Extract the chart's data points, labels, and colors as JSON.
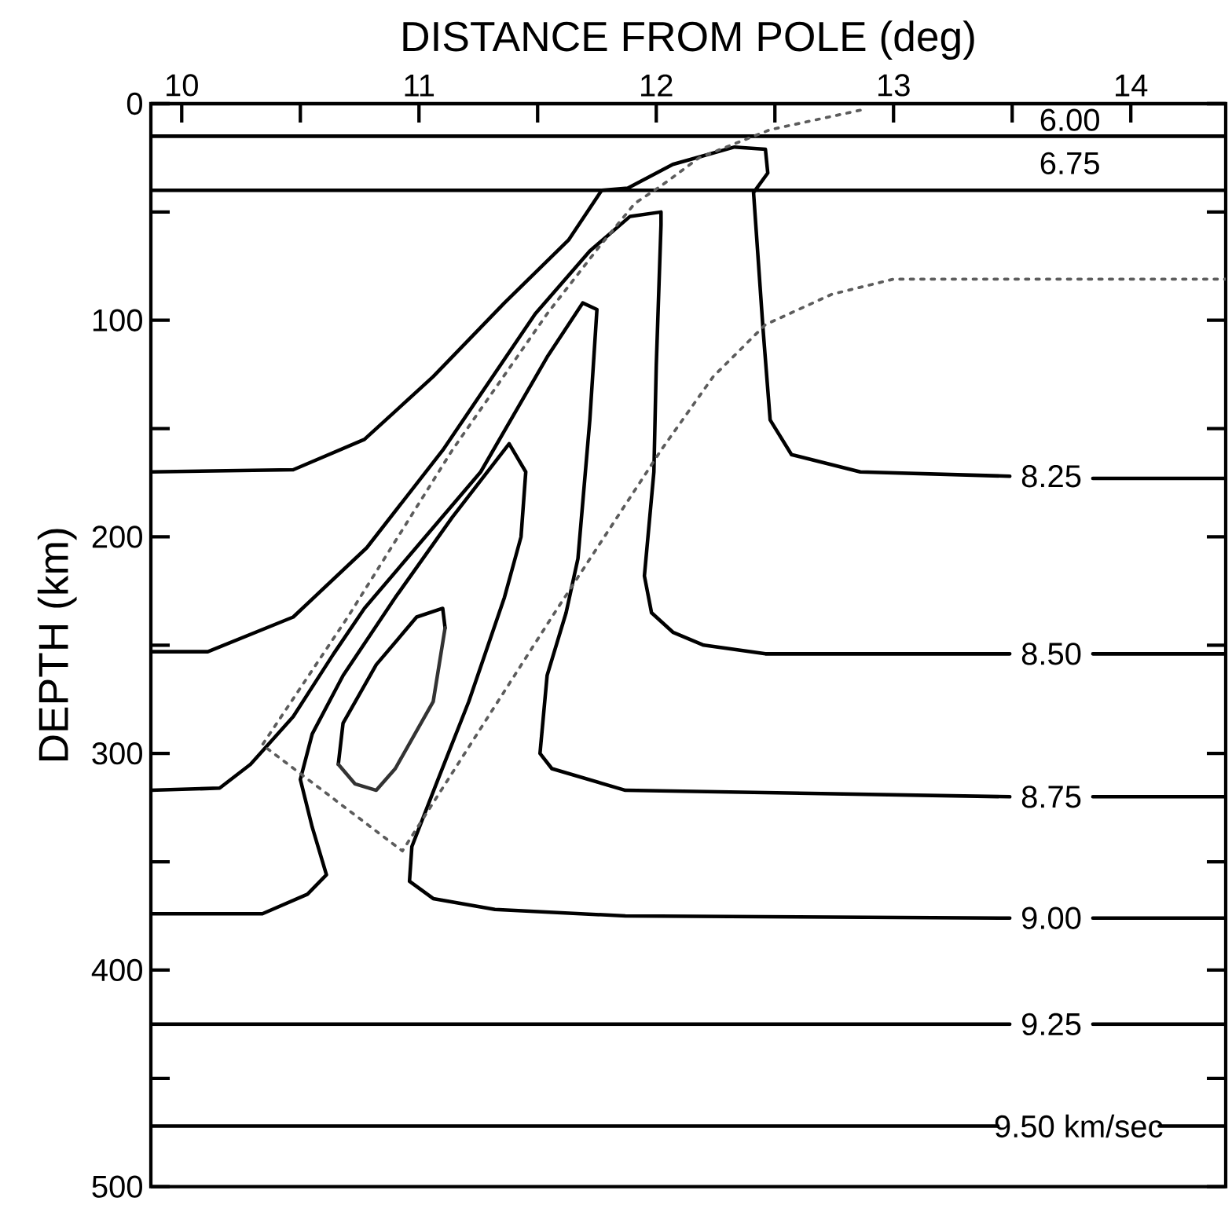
{
  "chart_data": {
    "type": "line",
    "xlabel": "DISTANCE FROM POLE (deg)",
    "ylabel": "DEPTH (km)",
    "xlim": [
      9.87,
      14.4
    ],
    "ylim": [
      500,
      0
    ],
    "xticks": [
      10,
      {
        "value": 10.5,
        "label": null
      },
      11,
      {
        "value": 11.5,
        "label": null
      },
      12,
      {
        "value": 12.5,
        "label": null
      },
      13,
      {
        "value": 13.5,
        "label": null
      },
      14
    ],
    "yticks": [
      0,
      {
        "value": 50,
        "label": null
      },
      100,
      {
        "value": 150,
        "label": null
      },
      200,
      {
        "value": 250,
        "label": null
      },
      300,
      {
        "value": 350,
        "label": null
      },
      400,
      {
        "value": 450,
        "label": null
      },
      500
    ],
    "tick_labels": "xy",
    "marker": "none",
    "line_style": "solid",
    "annotations": [
      "6.00",
      "6.75"
    ],
    "series": [
      {
        "color": "#000000",
        "x": [
          9.87,
          14.4
        ],
        "values": [
          15,
          15
        ]
      },
      {
        "color": "#000000",
        "x": [
          9.87,
          14.4
        ],
        "values": [
          40,
          40
        ]
      },
      {
        "name": "8.25",
        "color": "#000000",
        "x": [
          9.87,
          10.47,
          10.77,
          11.06,
          11.36,
          11.63,
          11.77,
          11.88,
          12.07,
          12.33,
          12.46,
          12.47,
          12.41,
          12.45,
          12.48,
          12.57,
          12.86,
          13.49,
          13.66,
          13.84,
          14.4
        ],
        "values": [
          170,
          169,
          155,
          126,
          92,
          63,
          40,
          39,
          28,
          20,
          21,
          32,
          41,
          104,
          146,
          162,
          170,
          172,
          null,
          173,
          173
        ]
      },
      {
        "name": "8.50",
        "color": "#000000",
        "x": [
          9.87,
          10.11,
          10.47,
          10.78,
          11.1,
          11.49,
          11.72,
          11.89,
          12.02,
          12.02,
          12.0,
          11.99,
          11.95,
          11.98,
          12.07,
          12.2,
          12.46,
          13.49,
          13.66,
          13.84,
          14.4
        ],
        "values": [
          253,
          253,
          237,
          205,
          160,
          97,
          68,
          52,
          50,
          56,
          121,
          170,
          218,
          235,
          244,
          250,
          254,
          254,
          null,
          254,
          254
        ]
      },
      {
        "name": "8.75",
        "color": "#000000",
        "x": [
          9.87,
          10.16,
          10.29,
          10.47,
          10.64,
          10.77,
          11.26,
          11.54,
          11.69,
          11.75,
          11.72,
          11.67,
          11.62,
          11.54,
          11.51,
          11.56,
          11.87,
          13.49,
          13.64,
          13.84,
          14.4
        ],
        "values": [
          317,
          316,
          305,
          283,
          254,
          233,
          170,
          117,
          92,
          95,
          146,
          210,
          235,
          264,
          300,
          307,
          317,
          320,
          null,
          320,
          320
        ]
      },
      {
        "name": "9.00",
        "color": "#000000",
        "x": [
          9.87,
          10.34,
          10.53,
          10.61,
          10.55,
          10.5,
          10.55,
          10.68,
          10.9,
          11.14,
          11.38,
          11.45,
          11.43,
          11.36,
          11.21,
          11.08,
          10.97,
          10.96,
          11.06,
          11.32,
          11.87,
          13.49,
          13.66,
          13.84,
          14.4
        ],
        "values": [
          374,
          374,
          365,
          356,
          334,
          312,
          291,
          264,
          228,
          191,
          157,
          170,
          200,
          228,
          276,
          312,
          343,
          359,
          367,
          372,
          375,
          376,
          null,
          376,
          376
        ]
      },
      {
        "color": "#000000",
        "x": [
          10.66,
          10.68,
          10.82,
          10.99,
          11.1,
          11.11
        ],
        "values": [
          305,
          286,
          259,
          237,
          233,
          242
        ]
      },
      {
        "color": "#333333",
        "x": [
          10.66,
          10.73,
          10.82,
          10.9,
          11.06,
          11.11
        ],
        "values": [
          305,
          314,
          317,
          307,
          276,
          242
        ]
      },
      {
        "name": "9.25",
        "color": "#000000",
        "x": [
          9.87,
          13.49,
          13.66,
          13.84,
          14.4
        ],
        "values": [
          425,
          425,
          null,
          425,
          425
        ]
      },
      {
        "name": "9.50 km/sec",
        "color": "#000000",
        "x": [
          9.87,
          13.44,
          13.78,
          14.12,
          14.4
        ],
        "values": [
          472,
          472,
          null,
          472,
          472
        ]
      },
      {
        "color": "#5c5c5c",
        "line_style": "dotted",
        "x": [
          12.86,
          12.48,
          12.18,
          12.02,
          11.91,
          11.76,
          11.54,
          11.14,
          10.7,
          10.34,
          10.93,
          11.56,
          12.02,
          12.24,
          12.46,
          12.74,
          13.0,
          14.4
        ],
        "values": [
          3,
          12,
          25,
          38,
          46,
          66,
          97,
          160,
          237,
          296,
          345,
          237,
          160,
          126,
          102,
          88,
          81,
          81
        ]
      }
    ]
  }
}
